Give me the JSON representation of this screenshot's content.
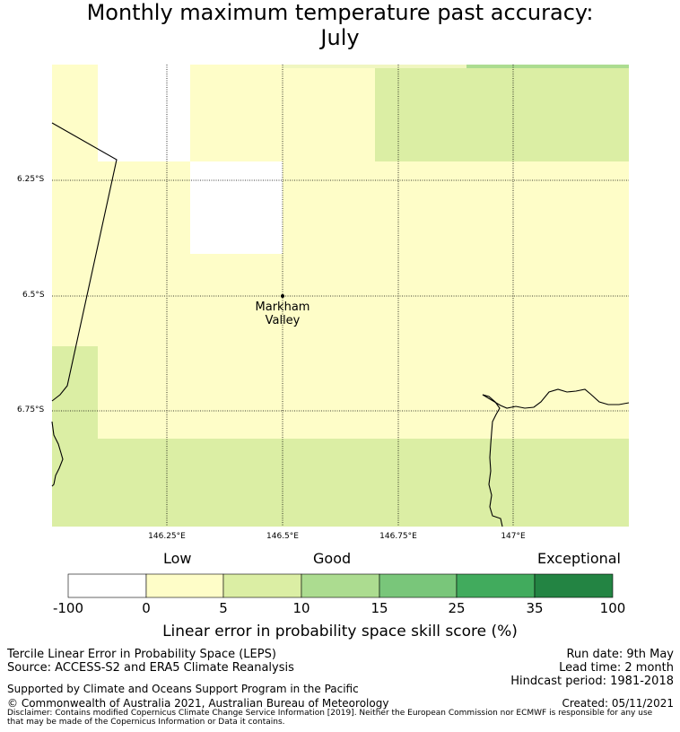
{
  "title_line1": "Monthly maximum temperature past accuracy:",
  "title_line2": "July",
  "map": {
    "lat_labels": [
      "6.25°S",
      "6.5°S",
      "6.75°S"
    ],
    "lon_labels": [
      "146.25°E",
      "146.5°E",
      "146.75°E",
      "147°E"
    ],
    "place": {
      "name_line1": "Markham",
      "name_line2": "Valley"
    }
  },
  "colorbar": {
    "category_labels": [
      "Low",
      "Good",
      "Exceptional"
    ],
    "ticks": [
      "-100",
      "0",
      "5",
      "10",
      "15",
      "25",
      "35",
      "100"
    ],
    "colors": [
      "#ffffff",
      "#fefdc8",
      "#dbeea4",
      "#acdc90",
      "#79c67a",
      "#41ab5d",
      "#238443"
    ],
    "title": "Linear error in probability space skill score (%)"
  },
  "footer": {
    "left_line1": "Tercile Linear Error in Probability Space (LEPS)",
    "left_line2": "Source: ACCESS-S2 and ERA5 Climate Reanalysis",
    "right_line1": "Run date: 9th May",
    "right_line2": "Lead time: 2 month",
    "right_line3": "Hindcast period: 1981-2018",
    "support": "Supported by Climate and Oceans Support Program in the Pacific",
    "copyright": "© Commonwealth of Australia 2021, Australian Bureau of Meteorology",
    "created": "Created: 05/11/2021",
    "disclaimer_line1": "Disclaimer: Contains modified Copernicus Climate Change Service Information [2019]. Neither the European Commission nor ECMWF is responsible for any use",
    "disclaimer_line2": "that may be made of the Copernicus Information or Data it contains."
  }
}
